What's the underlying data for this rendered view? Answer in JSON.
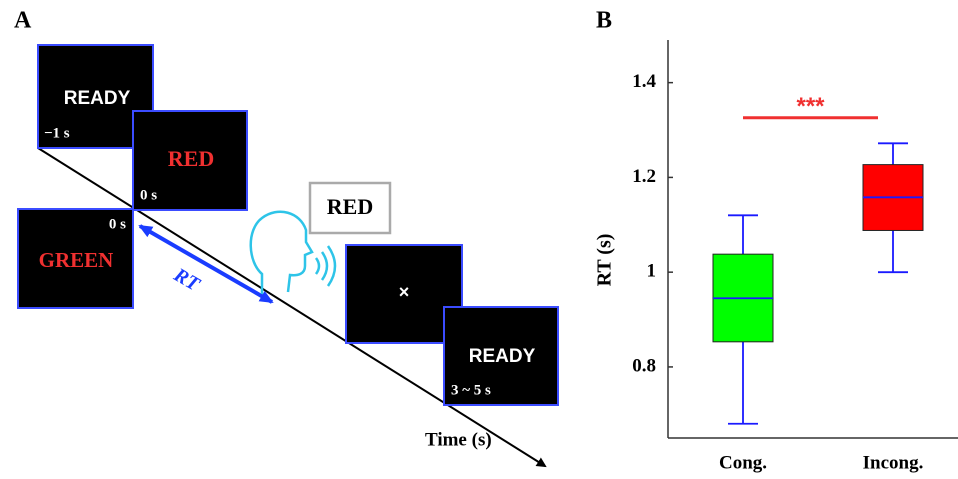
{
  "panel_a": {
    "label": "A",
    "screen_ready_start": {
      "word": "READY",
      "time": "−1 s"
    },
    "screen_red": {
      "word": "RED",
      "time": "0 s"
    },
    "screen_green": {
      "word": "GREEN",
      "time": "0 s"
    },
    "speech": "RED",
    "rt_label": "RT",
    "fixation": "×",
    "screen_ready_end": {
      "word": "READY",
      "time": "3 ~ 5 s"
    },
    "time_axis": "Time (s)"
  },
  "chart_data": {
    "type": "box",
    "panel_label": "B",
    "y_label": "RT (s)",
    "categories": [
      "Cong.",
      "Incong."
    ],
    "stats": [
      {
        "min": 0.68,
        "q1": 0.853,
        "median": 0.945,
        "q3": 1.038,
        "max": 1.12
      },
      {
        "min": 1.0,
        "q1": 1.088,
        "median": 1.158,
        "q3": 1.227,
        "max": 1.272
      }
    ],
    "colors": [
      "#00ff00",
      "#ff0000"
    ],
    "edge_color": "#1a1aff",
    "ylim": [
      0.65,
      1.49
    ],
    "yticks": [
      0.8,
      1,
      1.2,
      1.4
    ],
    "significance": {
      "text": "***",
      "y": 1.326,
      "color": "#f03030"
    }
  }
}
